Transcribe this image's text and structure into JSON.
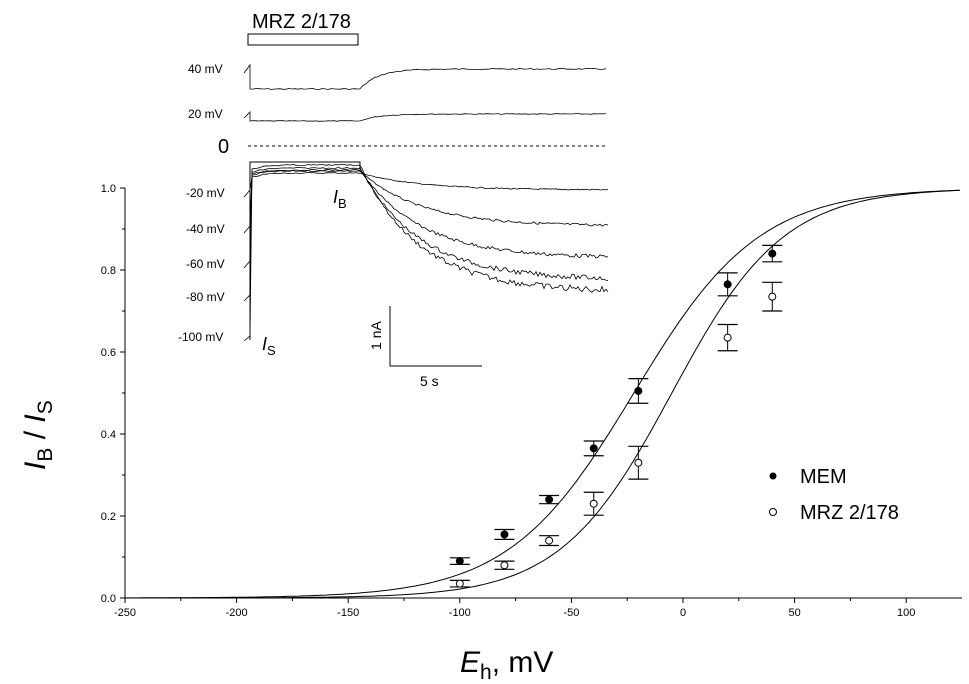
{
  "chart_data": {
    "type": "scatter",
    "xlabel": {
      "main": "E",
      "sub": "h",
      "unit": ", mV"
    },
    "ylabel": {
      "main1": "I",
      "sub1": "B",
      "sep": " / ",
      "main2": "I",
      "sub2": "S"
    },
    "xlim": [
      -250,
      125
    ],
    "ylim": [
      0,
      1.0
    ],
    "x_ticks": [
      -250,
      -200,
      -150,
      -100,
      -50,
      0,
      50,
      100
    ],
    "y_ticks": [
      "0.0",
      "0.2",
      "0.4",
      "0.6",
      "0.8",
      "1.0"
    ],
    "series": [
      {
        "name": "MEM",
        "marker": "filled-circle",
        "x": [
          -100,
          -80,
          -60,
          -40,
          -20,
          20,
          40
        ],
        "y": [
          0.09,
          0.155,
          0.24,
          0.365,
          0.505,
          0.765,
          0.84
        ],
        "err": [
          0.008,
          0.012,
          0.01,
          0.018,
          0.03,
          0.028,
          0.02
        ],
        "fit_v50": -22,
        "fit_k": 28
      },
      {
        "name": "MRZ 2/178",
        "marker": "open-circle",
        "x": [
          -100,
          -80,
          -60,
          -40,
          -20,
          20,
          40
        ],
        "y": [
          0.035,
          0.08,
          0.14,
          0.23,
          0.33,
          0.635,
          0.735
        ],
        "err": [
          0.008,
          0.01,
          0.012,
          0.028,
          0.04,
          0.032,
          0.035
        ],
        "fit_v50": -5,
        "fit_k": 25
      }
    ],
    "legend_position": "right",
    "inset": {
      "bar_label": "MRZ 2/178",
      "zero_label": "0",
      "trace_labels": [
        "40 mV",
        "20 mV",
        "-20 mV",
        "-40 mV",
        "-60 mV",
        "-80 mV",
        "-100 mV"
      ],
      "is_label": {
        "main": "I",
        "sub": "S"
      },
      "ib_label": {
        "main": "I",
        "sub": "B"
      },
      "scale_current": "1 nA",
      "scale_time": "5 s"
    }
  }
}
